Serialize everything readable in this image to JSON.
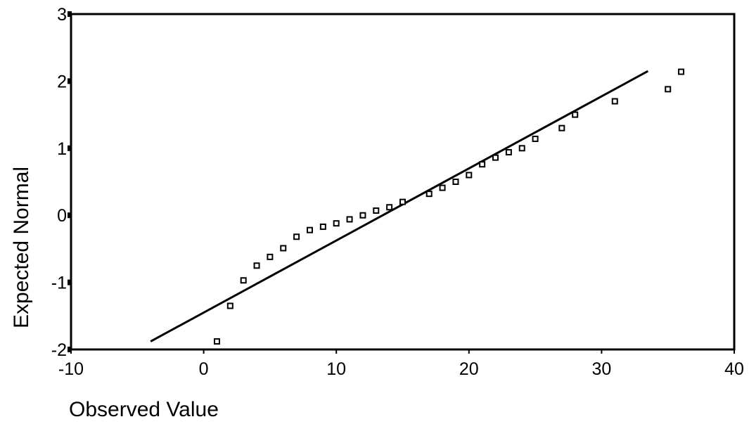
{
  "chart_data": {
    "type": "scatter",
    "title": "",
    "xlabel": "Observed Value",
    "ylabel": "Expected Normal",
    "xlim": [
      -10,
      40
    ],
    "ylim": [
      -2,
      3
    ],
    "xticks": [
      "-10",
      "0",
      "10",
      "20",
      "30",
      "40"
    ],
    "yticks": [
      "-2",
      "-1",
      "0",
      "1",
      "2",
      "3"
    ],
    "grid": false,
    "legend": "none",
    "colors": {
      "line": "#000000",
      "points": "#000000",
      "frame": "#000000"
    },
    "points": [
      {
        "x": 1,
        "y": -1.88
      },
      {
        "x": 2,
        "y": -1.35
      },
      {
        "x": 3,
        "y": -0.97
      },
      {
        "x": 4,
        "y": -0.75
      },
      {
        "x": 5,
        "y": -0.62
      },
      {
        "x": 6,
        "y": -0.49
      },
      {
        "x": 7,
        "y": -0.32
      },
      {
        "x": 8,
        "y": -0.22
      },
      {
        "x": 9,
        "y": -0.17
      },
      {
        "x": 10,
        "y": -0.12
      },
      {
        "x": 11,
        "y": -0.06
      },
      {
        "x": 12,
        "y": 0.0
      },
      {
        "x": 13,
        "y": 0.07
      },
      {
        "x": 14,
        "y": 0.12
      },
      {
        "x": 15,
        "y": 0.2
      },
      {
        "x": 17,
        "y": 0.32
      },
      {
        "x": 18,
        "y": 0.41
      },
      {
        "x": 19,
        "y": 0.5
      },
      {
        "x": 20,
        "y": 0.6
      },
      {
        "x": 21,
        "y": 0.76
      },
      {
        "x": 22,
        "y": 0.86
      },
      {
        "x": 23,
        "y": 0.94
      },
      {
        "x": 24,
        "y": 1.0
      },
      {
        "x": 25,
        "y": 1.14
      },
      {
        "x": 27,
        "y": 1.3
      },
      {
        "x": 28,
        "y": 1.5
      },
      {
        "x": 31,
        "y": 1.7
      },
      {
        "x": 35,
        "y": 1.88
      },
      {
        "x": 36,
        "y": 2.14
      }
    ],
    "reference_line": {
      "x1": -4,
      "y1": -1.88,
      "x2": 33.5,
      "y2": 2.15
    }
  }
}
